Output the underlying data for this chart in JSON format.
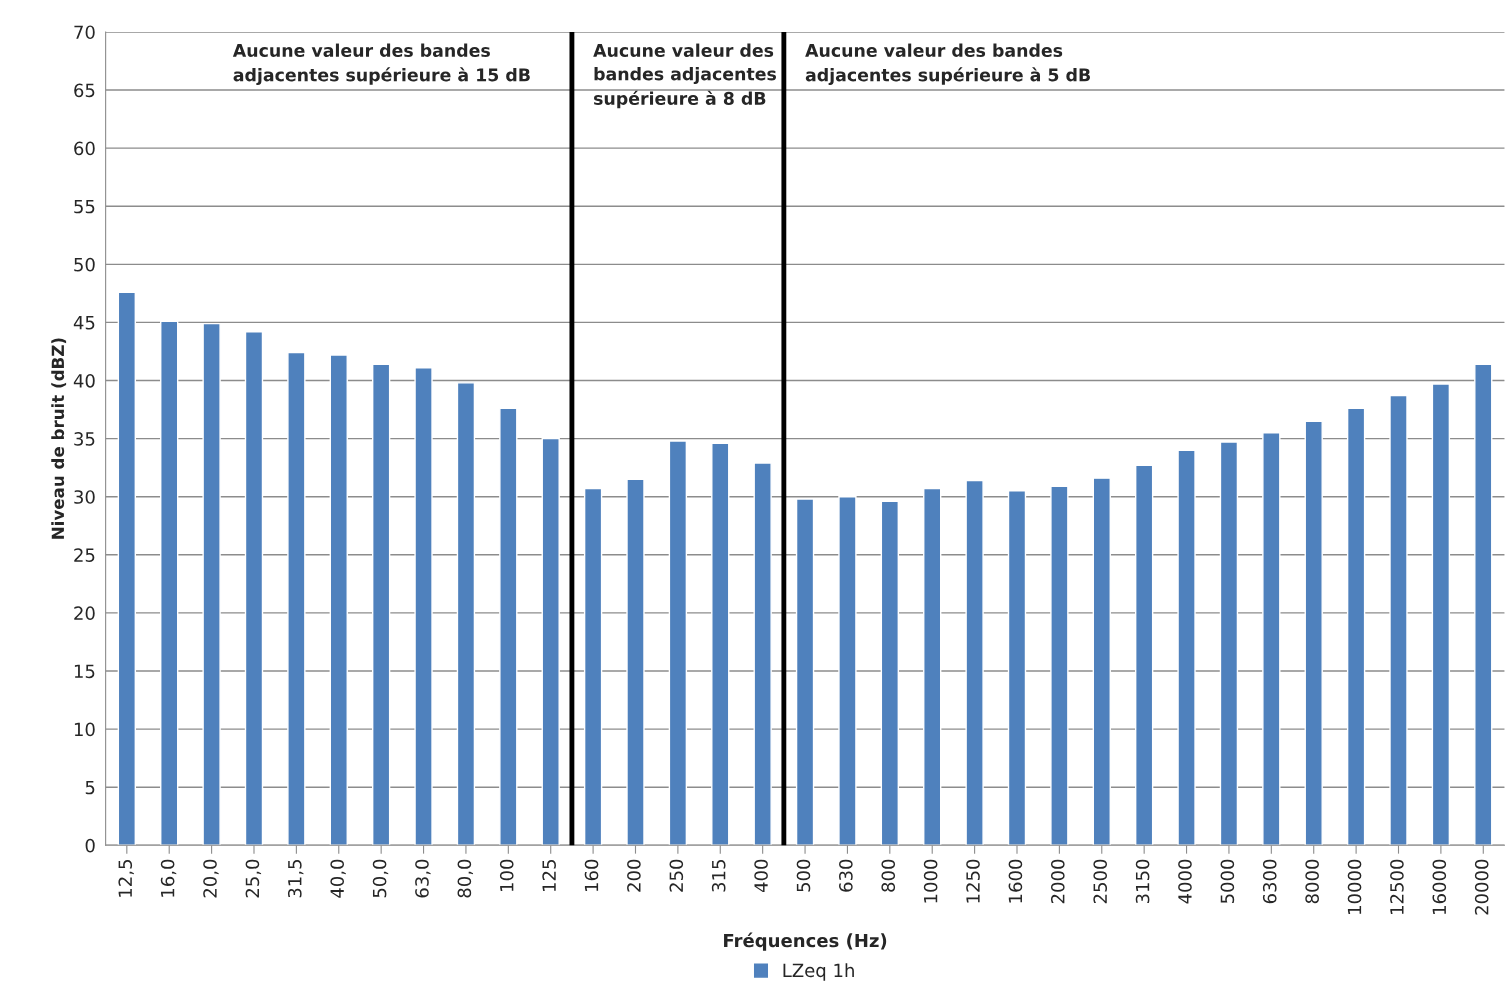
{
  "chart_data": {
    "type": "bar",
    "xlabel": "Fréquences (Hz)",
    "ylabel": "Niveau de bruit (dBZ)",
    "categories": [
      "12,5",
      "16,0",
      "20,0",
      "25,0",
      "31,5",
      "40,0",
      "50,0",
      "63,0",
      "80,0",
      "100",
      "125",
      "160",
      "200",
      "250",
      "315",
      "400",
      "500",
      "630",
      "800",
      "1000",
      "1250",
      "1600",
      "2000",
      "2500",
      "3150",
      "4000",
      "5000",
      "6300",
      "8000",
      "10000",
      "12500",
      "16000",
      "20000"
    ],
    "series": [
      {
        "name": "LZeq 1h",
        "color": "#4f81bd",
        "values": [
          47.6,
          45.1,
          44.9,
          44.2,
          42.4,
          42.2,
          41.4,
          41.1,
          39.8,
          37.6,
          35.0,
          30.7,
          31.5,
          34.8,
          34.6,
          32.9,
          29.8,
          30.0,
          29.6,
          30.7,
          31.4,
          30.5,
          30.9,
          31.6,
          32.7,
          34.0,
          34.7,
          35.5,
          36.5,
          37.6,
          38.7,
          39.7,
          41.4
        ]
      }
    ],
    "ylim": [
      0,
      70
    ],
    "yticks": [
      0,
      5,
      10,
      15,
      20,
      25,
      30,
      35,
      40,
      45,
      50,
      55,
      60,
      65,
      70
    ],
    "grid": "y",
    "legend": "bottom",
    "annotations": [
      "Aucune valeur des bandes\nadjacentes supérieure à 15 dB",
      "Aucune valeur des\nbandes adjacentes\nsupérieure à 8 dB",
      "Aucune valeur des bandes\nadjacentes supérieure à 5 dB"
    ]
  }
}
